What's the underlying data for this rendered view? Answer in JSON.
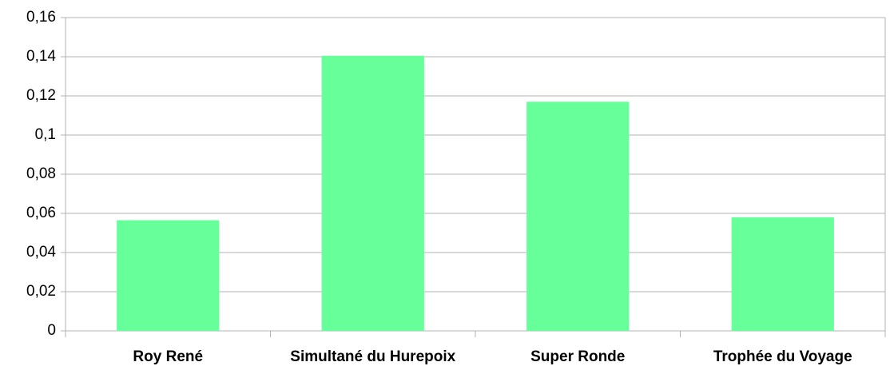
{
  "chart_data": {
    "type": "bar",
    "categories": [
      "Roy René",
      "Simultané du Hurepoix",
      "Super Ronde",
      "Trophée du Voyage"
    ],
    "values": [
      0.0565,
      0.1405,
      0.117,
      0.058
    ],
    "color": "#66ff99",
    "ylim": [
      0,
      0.16
    ],
    "yticks": [
      0,
      {
        "value": 0.02,
        "label": "0,02"
      },
      {
        "value": 0.04,
        "label": "0,04"
      },
      {
        "value": 0.06,
        "label": "0,06"
      },
      {
        "value": 0.08,
        "label": "0,08"
      },
      {
        "value": 0.1,
        "label": "0,1"
      },
      {
        "value": 0.12,
        "label": "0,12"
      },
      {
        "value": 0.14,
        "label": "0,14"
      },
      {
        "value": 0.16,
        "label": "0,16"
      }
    ],
    "grid": true
  }
}
